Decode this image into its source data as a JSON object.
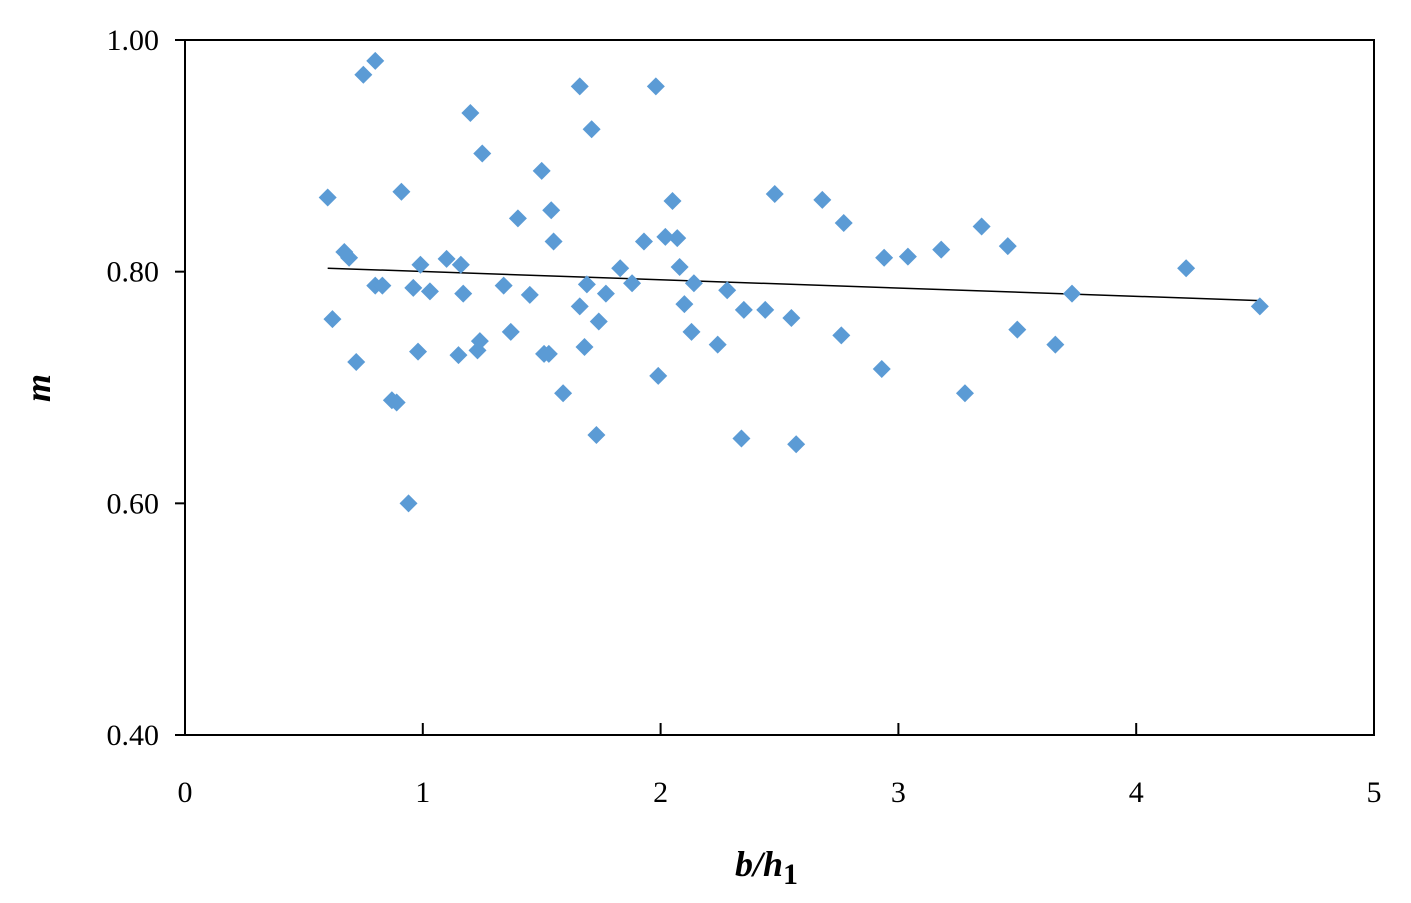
{
  "chart_data": {
    "type": "scatter",
    "xlabel_main": "b/h",
    "xlabel_sub": "1",
    "ylabel": "m",
    "xlim": [
      0,
      5
    ],
    "ylim": [
      0.4,
      1.0
    ],
    "x_ticks": [
      "0",
      "1",
      "2",
      "3",
      "4",
      "5"
    ],
    "y_ticks": [
      "0.40",
      "0.60",
      "0.80",
      "1.00"
    ],
    "grid": false,
    "legend": "none",
    "marker_color": "#5B9BD5",
    "marker_shape": "diamond",
    "trendline_color": "#000000",
    "trendline": {
      "x": [
        0.6,
        4.52
      ],
      "y": [
        0.803,
        0.775
      ]
    },
    "series": [
      {
        "points": [
          [
            0.6,
            0.864
          ],
          [
            0.62,
            0.759
          ],
          [
            0.67,
            0.817
          ],
          [
            0.69,
            0.812
          ],
          [
            0.72,
            0.722
          ],
          [
            0.75,
            0.97
          ],
          [
            0.8,
            0.982
          ],
          [
            0.8,
            0.788
          ],
          [
            0.83,
            0.788
          ],
          [
            0.87,
            0.689
          ],
          [
            0.89,
            0.687
          ],
          [
            0.91,
            0.869
          ],
          [
            0.94,
            0.6
          ],
          [
            0.96,
            0.786
          ],
          [
            0.98,
            0.731
          ],
          [
            0.99,
            0.806
          ],
          [
            1.03,
            0.783
          ],
          [
            1.1,
            0.811
          ],
          [
            1.15,
            0.728
          ],
          [
            1.16,
            0.806
          ],
          [
            1.17,
            0.781
          ],
          [
            1.2,
            0.937
          ],
          [
            1.23,
            0.732
          ],
          [
            1.24,
            0.74
          ],
          [
            1.25,
            0.902
          ],
          [
            1.34,
            0.788
          ],
          [
            1.37,
            0.748
          ],
          [
            1.4,
            0.846
          ],
          [
            1.45,
            0.78
          ],
          [
            1.5,
            0.887
          ],
          [
            1.51,
            0.729
          ],
          [
            1.53,
            0.729
          ],
          [
            1.54,
            0.853
          ],
          [
            1.55,
            0.826
          ],
          [
            1.59,
            0.695
          ],
          [
            1.66,
            0.96
          ],
          [
            1.66,
            0.77
          ],
          [
            1.68,
            0.735
          ],
          [
            1.69,
            0.789
          ],
          [
            1.71,
            0.923
          ],
          [
            1.73,
            0.659
          ],
          [
            1.74,
            0.757
          ],
          [
            1.77,
            0.781
          ],
          [
            1.83,
            0.803
          ],
          [
            1.88,
            0.79
          ],
          [
            1.93,
            0.826
          ],
          [
            1.98,
            0.96
          ],
          [
            1.99,
            0.71
          ],
          [
            2.02,
            0.83
          ],
          [
            2.05,
            0.861
          ],
          [
            2.07,
            0.829
          ],
          [
            2.08,
            0.804
          ],
          [
            2.1,
            0.772
          ],
          [
            2.13,
            0.748
          ],
          [
            2.14,
            0.79
          ],
          [
            2.24,
            0.737
          ],
          [
            2.28,
            0.784
          ],
          [
            2.34,
            0.656
          ],
          [
            2.35,
            0.767
          ],
          [
            2.44,
            0.767
          ],
          [
            2.48,
            0.867
          ],
          [
            2.55,
            0.76
          ],
          [
            2.57,
            0.651
          ],
          [
            2.68,
            0.862
          ],
          [
            2.76,
            0.745
          ],
          [
            2.77,
            0.842
          ],
          [
            2.93,
            0.716
          ],
          [
            2.94,
            0.812
          ],
          [
            3.04,
            0.813
          ],
          [
            3.18,
            0.819
          ],
          [
            3.28,
            0.695
          ],
          [
            3.35,
            0.839
          ],
          [
            3.46,
            0.822
          ],
          [
            3.5,
            0.75
          ],
          [
            3.66,
            0.737
          ],
          [
            3.73,
            0.781
          ],
          [
            4.21,
            0.803
          ],
          [
            4.52,
            0.77
          ]
        ]
      }
    ]
  }
}
